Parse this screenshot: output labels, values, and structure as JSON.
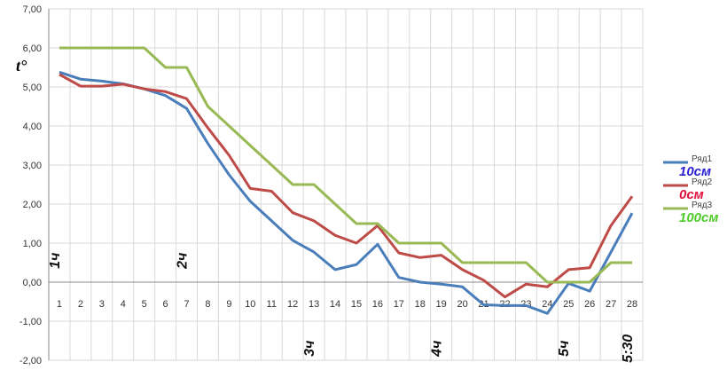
{
  "chart_data": {
    "type": "line",
    "title": "",
    "xlabel": "",
    "ylabel": "t°",
    "ylim": [
      -2,
      7
    ],
    "yticks": [
      "-2,00",
      "-1,00",
      "0,00",
      "1,00",
      "2,00",
      "3,00",
      "4,00",
      "5,00",
      "6,00",
      "7,00"
    ],
    "categories": [
      "1",
      "2",
      "3",
      "4",
      "5",
      "6",
      "7",
      "8",
      "9",
      "10",
      "11",
      "12",
      "13",
      "14",
      "15",
      "16",
      "17",
      "18",
      "19",
      "20",
      "21",
      "22",
      "23",
      "24",
      "25",
      "26",
      "27",
      "28"
    ],
    "grid": true,
    "legend_position": "right",
    "series": [
      {
        "name": "Ряд1",
        "note": "10см",
        "color": "#4a7ebb",
        "note_color": "#2a1fd1",
        "values": [
          5.38,
          5.2,
          5.15,
          5.08,
          4.95,
          4.78,
          4.45,
          3.55,
          2.75,
          2.07,
          1.57,
          1.07,
          0.77,
          0.32,
          0.45,
          0.97,
          0.12,
          0.0,
          -0.05,
          -0.12,
          -0.58,
          -0.6,
          -0.6,
          -0.8,
          -0.03,
          -0.23,
          0.77,
          1.77
        ]
      },
      {
        "name": "Ряд2",
        "note": "0см",
        "color": "#be4b48",
        "note_color": "#e0103a",
        "values": [
          5.32,
          5.02,
          5.02,
          5.07,
          4.95,
          4.88,
          4.7,
          3.95,
          3.25,
          2.4,
          2.33,
          1.78,
          1.57,
          1.2,
          1.0,
          1.45,
          0.75,
          0.63,
          0.69,
          0.32,
          0.05,
          -0.38,
          -0.05,
          -0.12,
          0.32,
          0.37,
          1.45,
          2.2
        ]
      },
      {
        "name": "Ряд3",
        "note": "100см",
        "color": "#98b954",
        "note_color": "#4fcb2a",
        "values": [
          6.0,
          6.0,
          6.0,
          6.0,
          6.0,
          5.5,
          5.5,
          4.5,
          4.0,
          3.5,
          3.0,
          2.5,
          2.5,
          2.0,
          1.5,
          1.5,
          1.0,
          1.0,
          1.0,
          0.5,
          0.5,
          0.5,
          0.5,
          0.0,
          0.0,
          0.0,
          0.5,
          0.5
        ]
      }
    ],
    "annotations": [
      {
        "text": "1ч",
        "x": "1",
        "y": 0.55
      },
      {
        "text": "2ч",
        "x": "7",
        "y": 0.55
      },
      {
        "text": "3ч",
        "x": "13",
        "y": -1.7
      },
      {
        "text": "4ч",
        "x": "19",
        "y": -1.7
      },
      {
        "text": "5ч",
        "x": "25",
        "y": -1.7
      },
      {
        "text": "5:30",
        "x": "28",
        "y": -1.7
      }
    ]
  }
}
